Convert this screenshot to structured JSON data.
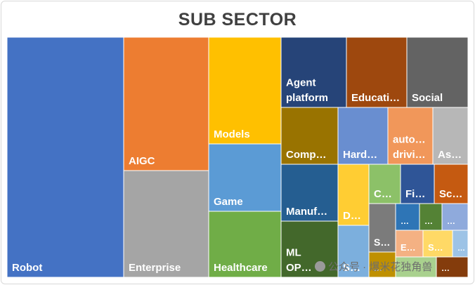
{
  "chart_data": {
    "type": "treemap",
    "title": "SUB SECTOR",
    "cells": [
      {
        "label": "Robot",
        "color": "#4472C4"
      },
      {
        "label": "AIGC",
        "color": "#ED7D31"
      },
      {
        "label": "Enterprise",
        "color": "#A5A5A5"
      },
      {
        "label": "Models",
        "color": "#FFC000"
      },
      {
        "label": "Game",
        "color": "#5B9BD5"
      },
      {
        "label": "Healthcare",
        "color": "#70AD47"
      },
      {
        "label": "Agent platform",
        "color": "#264478"
      },
      {
        "label": "Educati…",
        "color": "#9E480E"
      },
      {
        "label": "Social",
        "color": "#636363"
      },
      {
        "label": "Comp…",
        "color": "#997300"
      },
      {
        "label": "Hard…",
        "color": "#698ED0"
      },
      {
        "label": "auto… drivi…",
        "color": "#F1975A"
      },
      {
        "label": "As…",
        "color": "#B7B7B7"
      },
      {
        "label": "Manuf…",
        "color": "#255E91"
      },
      {
        "label": "ML OP…",
        "color": "#43682B"
      },
      {
        "label": "D…",
        "color": "#FFCD33"
      },
      {
        "label": "C…",
        "color": "#8CC168"
      },
      {
        "label": "Fi…",
        "color": "#2F5597"
      },
      {
        "label": "Sc…",
        "color": "#C55A11"
      },
      {
        "label": "S…",
        "color": "#7CAFDD"
      },
      {
        "label": "S…",
        "color": "#7B7B7B"
      },
      {
        "label": "…",
        "color": "#2E75B6"
      },
      {
        "label": "…",
        "color": "#548235"
      },
      {
        "label": "…",
        "color": "#8FAADC"
      },
      {
        "label": "E…",
        "color": "#F4B183"
      },
      {
        "label": "S…",
        "color": "#FFD966"
      },
      {
        "label": "…",
        "color": "#9DC3E6"
      },
      {
        "label": "…",
        "color": "#BF9000"
      },
      {
        "label": "",
        "color": "#A9D18E"
      },
      {
        "label": "…",
        "color": "#843C0C"
      }
    ]
  },
  "watermark": {
    "text": "公众号 · 爆米花独角兽"
  }
}
